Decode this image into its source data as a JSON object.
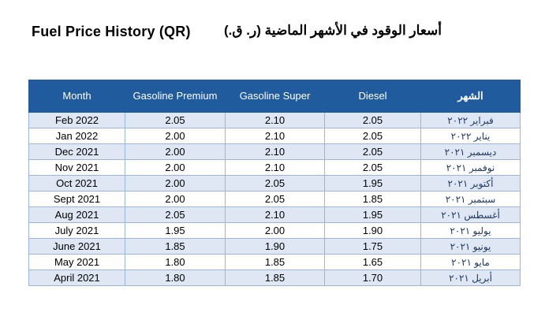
{
  "page": {
    "title_en": "Fuel Price History (QR)",
    "title_ar": "أسعار الوقود في الأشهر الماضية (ر. ق.)"
  },
  "colors": {
    "header_bg": "#205B9E",
    "header_text": "#FFFFFF",
    "stripe_bg": "#DEE7F3",
    "row_bg": "#FFFFFF",
    "border": "#9CB6D8",
    "arabic_text": "#1F3864",
    "english_text": "#000000"
  },
  "table": {
    "headers": [
      "Month",
      "Gasoline Premium",
      "Gasoline Super",
      "Diesel",
      "الشهر"
    ],
    "column_keys": [
      "month_en",
      "gasoline_premium",
      "gasoline_super",
      "diesel",
      "month_ar"
    ],
    "rows": [
      {
        "month_en": "Feb 2022",
        "gasoline_premium": "2.05",
        "gasoline_super": "2.10",
        "diesel": "2.05",
        "month_ar": "فبراير ٢٠٢٢"
      },
      {
        "month_en": "Jan 2022",
        "gasoline_premium": "2.00",
        "gasoline_super": "2.10",
        "diesel": "2.05",
        "month_ar": "يناير ٢٠٢٢"
      },
      {
        "month_en": "Dec 2021",
        "gasoline_premium": "2.00",
        "gasoline_super": "2.10",
        "diesel": "2.05",
        "month_ar": "ديسمبر ٢٠٢١"
      },
      {
        "month_en": "Nov 2021",
        "gasoline_premium": "2.00",
        "gasoline_super": "2.10",
        "diesel": "2.05",
        "month_ar": "نوفمبر ٢٠٢١"
      },
      {
        "month_en": "Oct 2021",
        "gasoline_premium": "2.00",
        "gasoline_super": "2.05",
        "diesel": "1.95",
        "month_ar": "أكتوبر ٢٠٢١"
      },
      {
        "month_en": "Sept 2021",
        "gasoline_premium": "2.00",
        "gasoline_super": "2.05",
        "diesel": "1.85",
        "month_ar": "سبتمبر ٢٠٢١"
      },
      {
        "month_en": "Aug 2021",
        "gasoline_premium": "2.05",
        "gasoline_super": "2.10",
        "diesel": "1.95",
        "month_ar": "أغسطس ٢٠٢١"
      },
      {
        "month_en": "July 2021",
        "gasoline_premium": "1.95",
        "gasoline_super": "2.00",
        "diesel": "1.90",
        "month_ar": "يوليو ٢٠٢١"
      },
      {
        "month_en": "June 2021",
        "gasoline_premium": "1.85",
        "gasoline_super": "1.90",
        "diesel": "1.75",
        "month_ar": "يونيو ٢٠٢١"
      },
      {
        "month_en": "May 2021",
        "gasoline_premium": "1.80",
        "gasoline_super": "1.85",
        "diesel": "1.65",
        "month_ar": "مايو ٢٠٢١"
      },
      {
        "month_en": "April 2021",
        "gasoline_premium": "1.80",
        "gasoline_super": "1.85",
        "diesel": "1.70",
        "month_ar": "أبريل ٢٠٢١"
      }
    ]
  }
}
